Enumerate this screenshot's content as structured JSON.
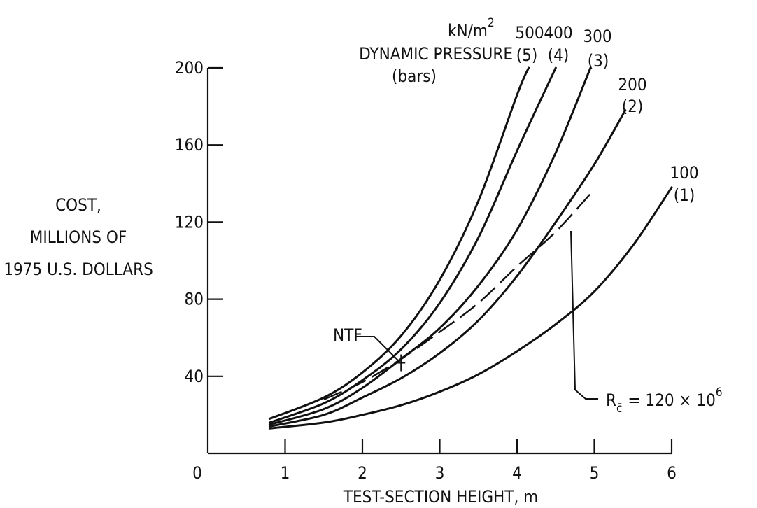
{
  "chart_data": {
    "type": "line",
    "ylabel": [
      "COST,",
      "MILLIONS OF",
      "1975 U.S. DOLLARS"
    ],
    "xlabel": "TEST-SECTION HEIGHT, m",
    "xlim": [
      0,
      6
    ],
    "ylim": [
      0,
      200
    ],
    "xticks": [
      "0",
      "1",
      "2",
      "3",
      "4",
      "5",
      "6"
    ],
    "yticks": [
      "40",
      "80",
      "120",
      "160",
      "200"
    ],
    "legend_title": {
      "units": "kN/m",
      "units_sup": "2",
      "line1": "DYNAMIC PRESSURE",
      "line2": "(bars)"
    },
    "series": [
      {
        "top": "100",
        "bottom": "(1)",
        "x": [
          0.8,
          1.5,
          2.0,
          2.5,
          3.0,
          3.5,
          4.0,
          4.5,
          5.0,
          5.5,
          6.0
        ],
        "y": [
          13,
          16,
          20,
          25,
          32,
          41,
          53,
          67,
          84,
          108,
          138
        ]
      },
      {
        "top": "200",
        "bottom": "(2)",
        "x": [
          0.8,
          1.5,
          2.0,
          2.5,
          3.0,
          3.5,
          4.0,
          4.5,
          5.0,
          5.4
        ],
        "y": [
          14,
          20,
          29,
          39,
          52,
          69,
          92,
          120,
          150,
          178
        ]
      },
      {
        "top": "300",
        "bottom": "(3)",
        "x": [
          0.8,
          1.5,
          2.0,
          2.5,
          3.0,
          3.5,
          4.0,
          4.5,
          4.95
        ],
        "y": [
          15,
          23,
          34,
          49,
          65,
          87,
          116,
          156,
          200
        ]
      },
      {
        "top": "400",
        "bottom": "(4)",
        "x": [
          0.8,
          1.5,
          2.0,
          2.5,
          3.0,
          3.5,
          4.0,
          4.5
        ],
        "y": [
          16,
          26,
          38,
          54,
          78,
          112,
          157,
          200
        ]
      },
      {
        "top": "500",
        "bottom": "(5)",
        "x": [
          0.8,
          1.5,
          2.0,
          2.5,
          3.0,
          3.5,
          4.0,
          4.15
        ],
        "y": [
          18,
          29,
          42,
          61,
          90,
          131,
          186,
          200
        ]
      }
    ],
    "reference_line": {
      "label_main": "R",
      "label_sub": "c̄",
      "label_rest": "= 120 × 10",
      "label_sup": "6",
      "x": [
        1.5,
        2.0,
        2.5,
        3.0,
        3.5,
        4.0,
        4.5,
        5.0
      ],
      "y": [
        28,
        37,
        49,
        63,
        78,
        97,
        115,
        137
      ]
    },
    "marker": {
      "label": "NTF",
      "x": 2.5,
      "y": 47
    }
  }
}
